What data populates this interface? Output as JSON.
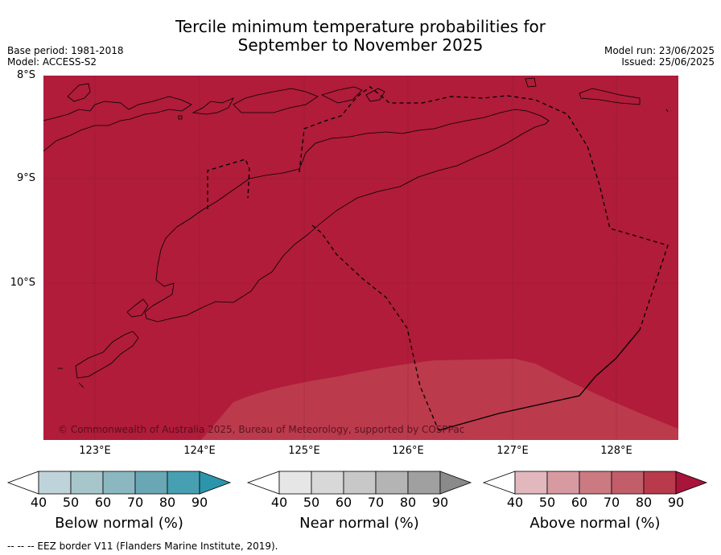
{
  "title_line1": "Tercile minimum temperature probabilities for",
  "title_line2": "September to November 2025",
  "base_period": "Base period: 1981-2018",
  "model": "Model: ACCESS-S2",
  "model_run": "Model run: 23/06/2025",
  "issued": "Issued: 25/06/2025",
  "lat_labels": [
    "8°S",
    "9°S",
    "10°S"
  ],
  "lon_labels": [
    "123°E",
    "124°E",
    "125°E",
    "126°E",
    "127°E",
    "128°E"
  ],
  "copyright": "© Commonwealth of Australia 2025, Bureau of Meteorology, supported by COSPPac",
  "colorbars": {
    "below": {
      "label": "Below normal (%)",
      "ticks": [
        "40",
        "50",
        "60",
        "70",
        "80",
        "90"
      ],
      "colors": [
        "#ffffff",
        "#bfd3da",
        "#a7c6cc",
        "#8bb7c1",
        "#6aa7b5",
        "#47a0b2",
        "#2c95ab"
      ]
    },
    "near": {
      "label": "Near normal (%)",
      "ticks": [
        "40",
        "50",
        "60",
        "70",
        "80",
        "90"
      ],
      "colors": [
        "#ffffff",
        "#e6e6e6",
        "#d8d8d8",
        "#c8c8c8",
        "#b4b4b4",
        "#a0a0a0",
        "#8a8a8a"
      ]
    },
    "above": {
      "label": "Above normal (%)",
      "ticks": [
        "40",
        "50",
        "60",
        "70",
        "80",
        "90"
      ],
      "colors": [
        "#ffffff",
        "#e2b8be",
        "#d89aa1",
        "#cb7a82",
        "#c25e69",
        "#b83a4b",
        "#a8143a"
      ]
    }
  },
  "map_colors": {
    "main": "#b01c3a",
    "lighter": "#bb3a4c",
    "grid": "#6e1a28"
  },
  "footer": "-- -- -- EEZ border V11 (Flanders Marine Institute, 2019)."
}
